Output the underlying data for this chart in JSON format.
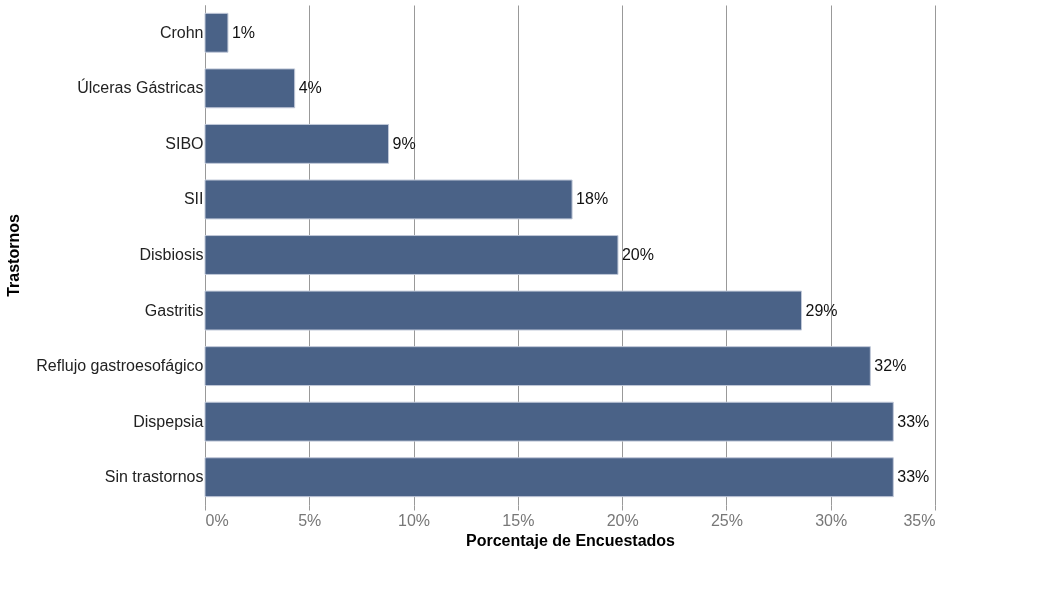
{
  "chart_data": {
    "type": "bar",
    "orientation": "horizontal",
    "xlabel": "Porcentaje de Encuestados",
    "ylabel": "Trastornos",
    "categories": [
      "Crohn",
      "Úlceras Gástricas",
      "SIBO",
      "SII",
      "Disbiosis",
      "Gastritis",
      "Reflujo gastroesofágico",
      "Dispepsia",
      "Sin trastornos"
    ],
    "values": [
      1.1,
      4.3,
      8.8,
      17.6,
      19.8,
      28.6,
      31.9,
      33.0,
      33.0
    ],
    "value_labels": [
      "1%",
      "4%",
      "9%",
      "18%",
      "20%",
      "29%",
      "32%",
      "33%",
      "33%"
    ],
    "color": "#4a6287",
    "xlim": [
      0,
      35
    ],
    "xticks": [
      {
        "value": 0,
        "label": "0%"
      },
      {
        "value": 5,
        "label": "5%"
      },
      {
        "value": 10,
        "label": "10%"
      },
      {
        "value": 15,
        "label": "15%"
      },
      {
        "value": 20,
        "label": "20%"
      },
      {
        "value": 25,
        "label": "25%"
      },
      {
        "value": 30,
        "label": "30%"
      },
      {
        "value": 35,
        "label": "35%"
      }
    ],
    "grid": "x"
  }
}
